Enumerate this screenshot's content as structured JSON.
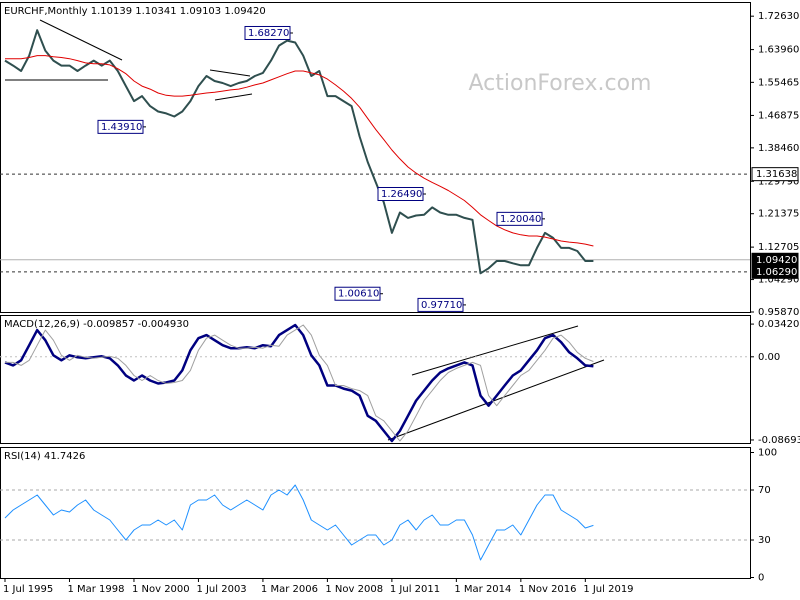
{
  "chart_data": [
    {
      "type": "line",
      "title": "EURCHF,Monthly  1.10139 1.10341 1.09103 1.09420",
      "watermark": "ActionForex.com",
      "categories": [
        "1 Jul 1995",
        null,
        null,
        null,
        null,
        null,
        null,
        null,
        "1 Mar 1998",
        null,
        null,
        null,
        null,
        null,
        null,
        null,
        "1 Nov 2000",
        null,
        null,
        null,
        null,
        null,
        null,
        null,
        "1 Jul 2003",
        null,
        null,
        null,
        null,
        null,
        null,
        null,
        "1 Mar 2006",
        null,
        null,
        null,
        null,
        null,
        null,
        null,
        "1 Nov 2008",
        null,
        null,
        null,
        null,
        null,
        null,
        null,
        "1 Jul 2011",
        null,
        null,
        null,
        null,
        null,
        null,
        null,
        "1 Mar 2014",
        null,
        null,
        null,
        null,
        null,
        null,
        null,
        "1 Nov 2016",
        null,
        null,
        null,
        null,
        null,
        null,
        null,
        "1 Jul 2019",
        null
      ],
      "series": [
        {
          "color": "#2f4f4f",
          "values": [
            1.611,
            1.598,
            1.584,
            1.624,
            1.69,
            1.637,
            1.611,
            1.598,
            1.598,
            1.584,
            1.598,
            1.611,
            1.598,
            1.611,
            1.584,
            1.545,
            1.506,
            1.519,
            1.493,
            1.479,
            1.474,
            1.466,
            1.479,
            1.506,
            1.545,
            1.571,
            1.558,
            1.553,
            1.545,
            1.553,
            1.558,
            1.571,
            1.579,
            1.611,
            1.65,
            1.663,
            1.658,
            1.624,
            1.571,
            1.584,
            1.519,
            1.519,
            1.506,
            1.493,
            1.414,
            1.348,
            1.295,
            1.243,
            1.164,
            1.217,
            1.203,
            1.209,
            1.211,
            1.23,
            1.217,
            1.211,
            1.211,
            1.203,
            1.198,
            1.059,
            1.072,
            1.091,
            1.091,
            1.085,
            1.08,
            1.08,
            1.125,
            1.164,
            1.151,
            1.125,
            1.125,
            1.117,
            1.091,
            1.091
          ]
        },
        {
          "color": "#e00000",
          "values": [
            1.616,
            1.616,
            1.616,
            1.619,
            1.624,
            1.624,
            1.621,
            1.619,
            1.616,
            1.611,
            1.605,
            1.603,
            1.603,
            1.6,
            1.59,
            1.577,
            1.558,
            1.545,
            1.537,
            1.527,
            1.521,
            1.519,
            1.519,
            1.521,
            1.524,
            1.527,
            1.529,
            1.532,
            1.535,
            1.537,
            1.542,
            1.548,
            1.553,
            1.561,
            1.569,
            1.577,
            1.584,
            1.584,
            1.579,
            1.574,
            1.563,
            1.548,
            1.532,
            1.513,
            1.49,
            1.461,
            1.432,
            1.406,
            1.379,
            1.356,
            1.335,
            1.319,
            1.306,
            1.295,
            1.285,
            1.274,
            1.261,
            1.248,
            1.23,
            1.211,
            1.196,
            1.182,
            1.172,
            1.164,
            1.159,
            1.156,
            1.156,
            1.153,
            1.148,
            1.143,
            1.14,
            1.138,
            1.135,
            1.13
          ]
        }
      ],
      "ylim": [
        0.9587,
        1.7631
      ],
      "yticks": [
        {
          "value": 1.7263,
          "label": "1.72630"
        },
        {
          "value": 1.6396,
          "label": "1.63960"
        },
        {
          "value": 1.55465,
          "label": "1.55465"
        },
        {
          "value": 1.46875,
          "label": "1.46875"
        },
        {
          "value": 1.3846,
          "label": "1.38460"
        },
        {
          "value": 1.2979,
          "label": "1.29790"
        },
        {
          "value": 1.21375,
          "label": "1.21375"
        },
        {
          "value": 1.12705,
          "label": "1.12705"
        },
        {
          "value": 1.0429,
          "label": "1.04290"
        },
        {
          "value": 0.9587,
          "label": "0.95870"
        }
      ],
      "levels": [
        {
          "value": 1.31638,
          "label": "1.31638",
          "dashed": true,
          "highlight": false
        },
        {
          "value": 1.0942,
          "label": "1.09420",
          "dashed": false,
          "highlight": true
        },
        {
          "value": 1.0629,
          "label": "1.06290",
          "dashed": true,
          "highlight": true
        }
      ],
      "annotations": [
        {
          "value": 1.6827,
          "label": "1.68270"
        },
        {
          "value": 1.4391,
          "label": "1.43910"
        },
        {
          "value": 1.2649,
          "label": "1.26490"
        },
        {
          "value": 1.2004,
          "label": "1.20040"
        },
        {
          "value": 1.0061,
          "label": "1.00610"
        },
        {
          "value": 0.9771,
          "label": "0.97710"
        }
      ]
    },
    {
      "type": "line",
      "title": "MACD(12,26,9) -0.009857 -0.004930",
      "series": [
        {
          "color": "#000080",
          "values": [
            -0.0058,
            -0.009,
            -0.0037,
            0.0121,
            0.0279,
            0.0174,
            0.0016,
            -0.0037,
            0.0016,
            -0.0005,
            -0.0016,
            -0.0005,
            0.0005,
            -0.0016,
            -0.009,
            -0.0195,
            -0.0248,
            -0.0195,
            -0.0248,
            -0.0279,
            -0.0269,
            -0.0248,
            -0.0142,
            0.0068,
            0.0195,
            0.0227,
            0.0174,
            0.0121,
            0.009,
            0.009,
            0.01,
            0.009,
            0.0121,
            0.0111,
            0.0227,
            0.0279,
            0.0332,
            0.0227,
            0.0016,
            -0.009,
            -0.03,
            -0.03,
            -0.0332,
            -0.0353,
            -0.0406,
            -0.0617,
            -0.0669,
            -0.0775,
            -0.088,
            -0.0775,
            -0.0617,
            -0.0458,
            -0.0353,
            -0.0248,
            -0.0164,
            -0.0121,
            -0.009,
            -0.0058,
            -0.009,
            -0.0406,
            -0.0511,
            -0.0406,
            -0.03,
            -0.0195,
            -0.0142,
            -0.0037,
            0.0068,
            0.0195,
            0.0227,
            0.0153,
            0.0047,
            -0.0016,
            -0.009,
            -0.0099
          ]
        },
        {
          "color": "#a0a0a0",
          "values": [
            -0.0058,
            -0.0058,
            -0.009,
            -0.0037,
            0.0121,
            0.0279,
            0.0174,
            0.0016,
            -0.0037,
            0.0016,
            -0.0005,
            -0.0016,
            -0.0005,
            0.0005,
            -0.0016,
            -0.009,
            -0.0195,
            -0.0248,
            -0.0195,
            -0.0248,
            -0.0279,
            -0.0269,
            -0.0248,
            -0.0142,
            0.0068,
            0.0195,
            0.0227,
            0.0174,
            0.0121,
            0.009,
            0.009,
            0.01,
            0.009,
            0.0121,
            0.0111,
            0.0227,
            0.0279,
            0.0332,
            0.0227,
            0.0016,
            -0.009,
            -0.03,
            -0.03,
            -0.0332,
            -0.0353,
            -0.0406,
            -0.0617,
            -0.0669,
            -0.0775,
            -0.088,
            -0.0775,
            -0.0617,
            -0.0458,
            -0.0353,
            -0.0248,
            -0.0164,
            -0.0121,
            -0.009,
            -0.0058,
            -0.009,
            -0.0406,
            -0.0511,
            -0.0406,
            -0.03,
            -0.0195,
            -0.0142,
            -0.0037,
            0.0068,
            0.0195,
            0.0227,
            0.0153,
            0.0047,
            -0.0016,
            -0.0049
          ]
        }
      ],
      "ylim": [
        -0.0901,
        0.0437
      ],
      "yticks": [
        0.034203,
        {
          "value": 0,
          "label": "0.00"
        },
        -0.086933
      ],
      "zero_line": true
    },
    {
      "type": "line",
      "title": "RSI(14) 41.7426",
      "series": [
        {
          "color": "#1e90ff",
          "values": [
            47.6,
            54.0,
            58.0,
            62.0,
            66.0,
            58.0,
            50.0,
            54.0,
            52.4,
            58.0,
            62.0,
            54.0,
            50.0,
            46.0,
            38.0,
            30.0,
            38.0,
            42.0,
            42.0,
            46.0,
            42.0,
            46.0,
            38.0,
            58.0,
            62.0,
            62.0,
            66.0,
            58.0,
            54.0,
            58.0,
            62.0,
            58.0,
            54.0,
            66.0,
            70.0,
            66.0,
            74.0,
            62.0,
            46.0,
            42.0,
            38.0,
            42.0,
            34.0,
            26.0,
            30.0,
            34.0,
            34.0,
            26.0,
            30.0,
            42.0,
            46.0,
            38.0,
            46.0,
            50.0,
            42.0,
            42.0,
            46.0,
            46.0,
            34.0,
            14.0,
            26.0,
            38.0,
            38.0,
            42.0,
            34.0,
            46.0,
            58.0,
            66.0,
            66.0,
            54.0,
            50.0,
            46.0,
            39.6,
            41.7
          ]
        }
      ],
      "ylim": [
        -0.4,
        104.4
      ],
      "yticks": [
        100,
        70,
        30,
        0
      ],
      "levels": [
        70,
        30
      ]
    }
  ]
}
